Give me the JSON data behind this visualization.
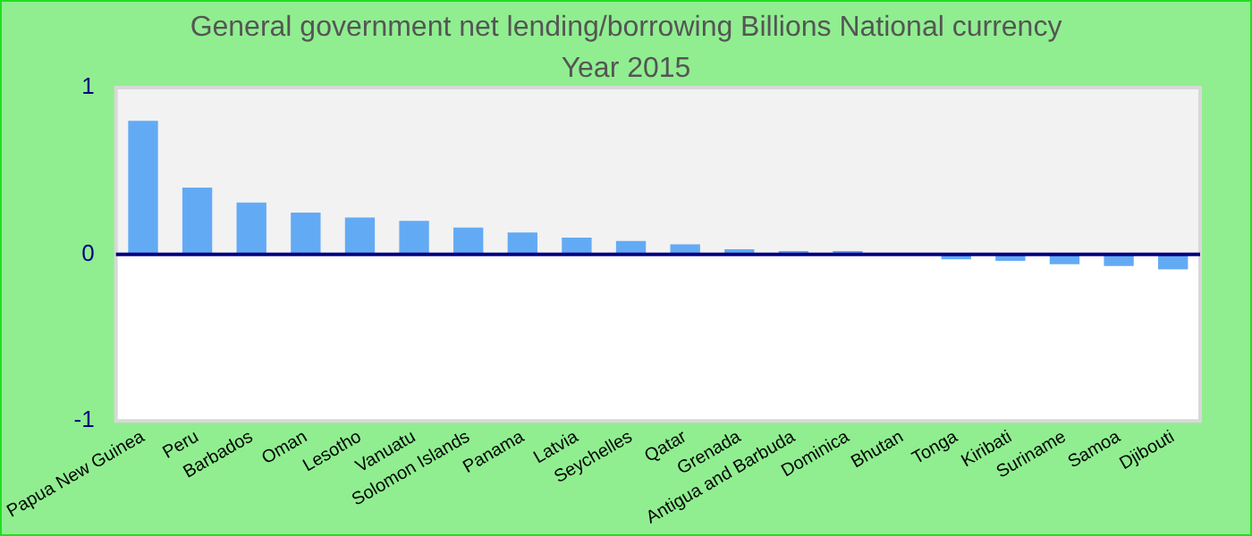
{
  "chart_data": {
    "type": "bar",
    "title": "General government net lending/borrowing Billions National currency",
    "subtitle": "Year 2015",
    "categories": [
      "Papua New Guinea",
      "Peru",
      "Barbados",
      "Oman",
      "Lesotho",
      "Vanuatu",
      "Solomon Islands",
      "Panama",
      "Latvia",
      "Seychelles",
      "Qatar",
      "Grenada",
      "Antigua and Barbuda",
      "Dominica",
      "Bhutan",
      "Tonga",
      "Kiribati",
      "Suriname",
      "Samoa",
      "Djibouti"
    ],
    "values": [
      0.8,
      0.4,
      0.31,
      0.25,
      0.22,
      0.2,
      0.16,
      0.13,
      0.1,
      0.08,
      0.06,
      0.03,
      0.02,
      0.02,
      0,
      -0.03,
      -0.04,
      -0.06,
      -0.07,
      -0.09
    ],
    "color": "#63aaf5",
    "ylim": [
      -1,
      1
    ],
    "yticks": [
      -1,
      0,
      1
    ],
    "legend": false,
    "bands": [
      {
        "axis": "y",
        "from": 0,
        "to": 1,
        "color": "#f2f2f2"
      }
    ],
    "ref_lines": [
      {
        "axis": "y",
        "value": 0,
        "color": "#000080"
      }
    ]
  }
}
